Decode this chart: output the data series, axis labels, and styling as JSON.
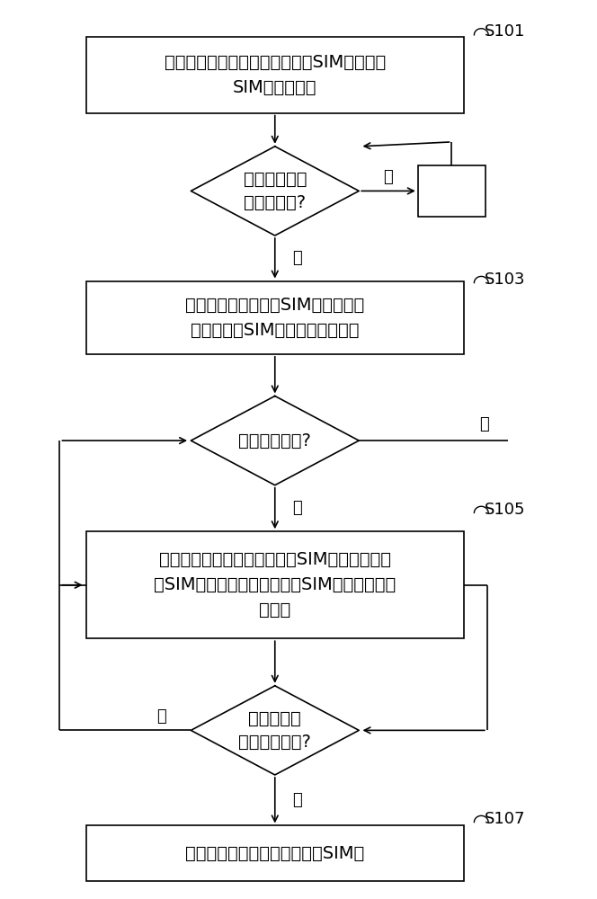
{
  "bg_color": "#ffffff",
  "text_color": "#000000",
  "font_size": 14,
  "label_font_size": 13,
  "step_font_size": 13,
  "box1_text": "为多个通讯装置配置同一组虚拟SIM卡和虚拟\nSIM卡使用规则",
  "box1_label": "S101",
  "d1_text": "任意通讯装置\n有通讯需求?",
  "box2_text": "该通讯装置根据虚拟SIM卡使用规则\n从一组虚拟SIM卡中选择启用一个",
  "box2_label": "S103",
  "d2_text": "接入网络成功?",
  "box3_text": "该通讯装置停用已启用的虚拟SIM卡，并根据虚\n拟SIM卡使用规则从一组虚拟SIM卡中选择启用\n另一个",
  "box3_label": "S105",
  "d3_text": "进行通讯，\n通讯成功完成?",
  "box4_text": "该通讯装置停用已启用的虚拟SIM卡",
  "box4_label": "S107",
  "yes_label": "是",
  "no_label": "否"
}
